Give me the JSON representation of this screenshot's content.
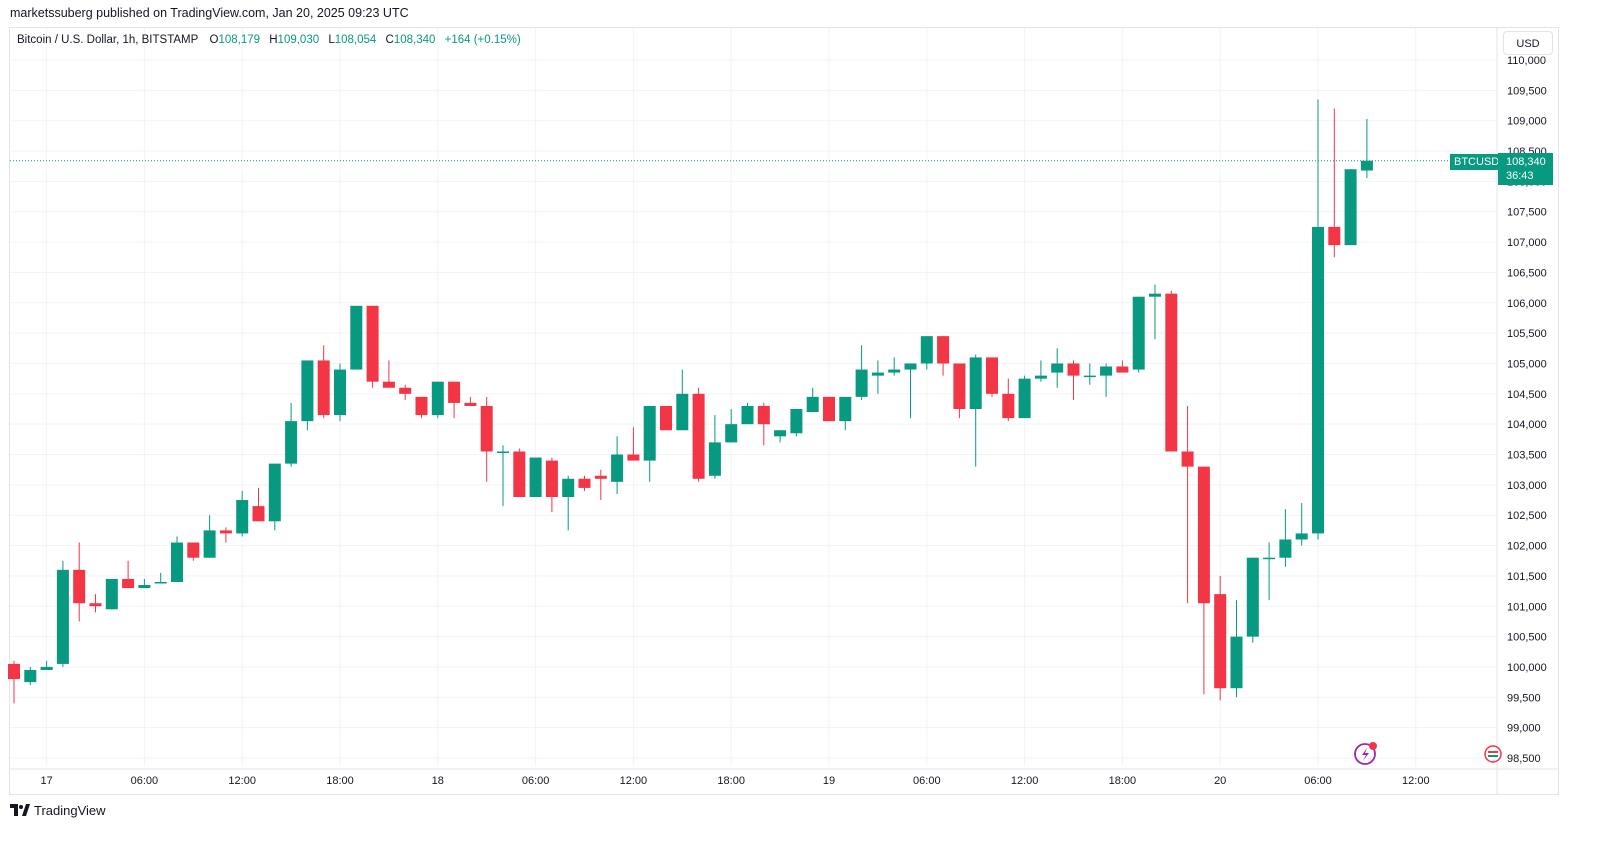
{
  "publisher_line": "marketssuberg published on TradingView.com, Jan 20, 2025 09:23 UTC",
  "legend": {
    "symbol": "Bitcoin / U.S. Dollar, 1h, BITSTAMP",
    "open_key": "O",
    "open": "108,179",
    "high_key": "H",
    "high": "109,030",
    "low_key": "L",
    "low": "108,054",
    "close_key": "C",
    "close": "108,340",
    "change": "+164 (+0.15%)"
  },
  "currency_button": "USD",
  "price_label": {
    "symbol": "BTCUSD",
    "price": "108,340",
    "countdown": "36:43"
  },
  "footer": {
    "brand": "TradingView"
  },
  "colors": {
    "up": "#089981",
    "down": "#f23645",
    "grid": "#f0f3fa",
    "axis_text": "#131722"
  },
  "icons": [
    "tradingview-logo-icon",
    "lightning-icon",
    "flag-icon"
  ],
  "chart_data": {
    "type": "candlestick",
    "interval": "1h",
    "ylim": [
      98500,
      110000
    ],
    "y_ticks": [
      98500,
      99000,
      99500,
      100000,
      100500,
      101000,
      101500,
      102000,
      102500,
      103000,
      103500,
      104000,
      104500,
      105000,
      105500,
      106000,
      106500,
      107000,
      107500,
      108000,
      108500,
      109000,
      109500,
      110000
    ],
    "y_tick_labels": [
      "98,500",
      "99,000",
      "99,500",
      "100,000",
      "100,500",
      "101,000",
      "101,500",
      "102,000",
      "102,500",
      "103,000",
      "103,500",
      "104,000",
      "104,500",
      "105,000",
      "105,500",
      "106,000",
      "106,500",
      "107,000",
      "107,500",
      "108,000",
      "108,500",
      "109,000",
      "109,500",
      "110,000"
    ],
    "x_ticks": [
      {
        "index": 2,
        "label": "17"
      },
      {
        "index": 8,
        "label": "06:00"
      },
      {
        "index": 14,
        "label": "12:00"
      },
      {
        "index": 20,
        "label": "18:00"
      },
      {
        "index": 26,
        "label": "18"
      },
      {
        "index": 32,
        "label": "06:00"
      },
      {
        "index": 38,
        "label": "12:00"
      },
      {
        "index": 44,
        "label": "18:00"
      },
      {
        "index": 50,
        "label": "19"
      },
      {
        "index": 56,
        "label": "06:00"
      },
      {
        "index": 62,
        "label": "12:00"
      },
      {
        "index": 68,
        "label": "18:00"
      },
      {
        "index": 74,
        "label": "20"
      },
      {
        "index": 80,
        "label": "06:00"
      },
      {
        "index": 86,
        "label": "12:00"
      }
    ],
    "current_price": 108340,
    "ohlc": [
      [
        100050,
        100100,
        99400,
        99800
      ],
      [
        99750,
        100000,
        99700,
        99950
      ],
      [
        99950,
        100100,
        99950,
        100000
      ],
      [
        100050,
        101750,
        100000,
        101600
      ],
      [
        101600,
        102050,
        100750,
        101050
      ],
      [
        101050,
        101200,
        100900,
        101000
      ],
      [
        100950,
        101450,
        100950,
        101450
      ],
      [
        101450,
        101750,
        101300,
        101300
      ],
      [
        101300,
        101450,
        101300,
        101350
      ],
      [
        101400,
        101550,
        101400,
        101400
      ],
      [
        101400,
        102150,
        101400,
        102050
      ],
      [
        102050,
        102050,
        101750,
        101800
      ],
      [
        101800,
        102500,
        101800,
        102250
      ],
      [
        102250,
        102300,
        102050,
        102200
      ],
      [
        102200,
        102900,
        102150,
        102750
      ],
      [
        102650,
        102950,
        102400,
        102400
      ],
      [
        102400,
        103350,
        102250,
        103350
      ],
      [
        103350,
        104350,
        103300,
        104050
      ],
      [
        104050,
        105050,
        103900,
        105050
      ],
      [
        105050,
        105300,
        104100,
        104150
      ],
      [
        104150,
        105000,
        104050,
        104900
      ],
      [
        104900,
        105950,
        104900,
        105950
      ],
      [
        105950,
        105950,
        104600,
        104700
      ],
      [
        104700,
        105050,
        104650,
        104600
      ],
      [
        104600,
        104650,
        104400,
        104500
      ],
      [
        104450,
        104450,
        104100,
        104150
      ],
      [
        104150,
        104700,
        104100,
        104700
      ],
      [
        104700,
        104700,
        104100,
        104350
      ],
      [
        104350,
        104450,
        104300,
        104300
      ],
      [
        104300,
        104450,
        103050,
        103550
      ],
      [
        103550,
        103650,
        102650,
        103550
      ],
      [
        103550,
        103600,
        102800,
        102800
      ],
      [
        102800,
        103450,
        102800,
        103450
      ],
      [
        103400,
        103450,
        102550,
        102800
      ],
      [
        102800,
        103150,
        102250,
        103100
      ],
      [
        103100,
        103150,
        102900,
        102950
      ],
      [
        103150,
        103250,
        102750,
        103100
      ],
      [
        103050,
        103800,
        102850,
        103500
      ],
      [
        103500,
        103950,
        103500,
        103400
      ],
      [
        103400,
        104300,
        103050,
        104300
      ],
      [
        104300,
        104300,
        103900,
        103900
      ],
      [
        103900,
        104900,
        103900,
        104500
      ],
      [
        104500,
        104600,
        103050,
        103100
      ],
      [
        103150,
        104150,
        103100,
        103700
      ],
      [
        103700,
        104250,
        103700,
        104000
      ],
      [
        104000,
        104350,
        104000,
        104300
      ],
      [
        104300,
        104350,
        103650,
        104000
      ],
      [
        103800,
        103900,
        103700,
        103900
      ],
      [
        103850,
        104200,
        103800,
        104250
      ],
      [
        104200,
        104600,
        104200,
        104450
      ],
      [
        104450,
        104450,
        104050,
        104050
      ],
      [
        104050,
        104450,
        103900,
        104450
      ],
      [
        104450,
        105300,
        104400,
        104900
      ],
      [
        104800,
        105050,
        104500,
        104850
      ],
      [
        104850,
        105100,
        104800,
        104900
      ],
      [
        104900,
        105000,
        104100,
        105000
      ],
      [
        105000,
        105450,
        104900,
        105450
      ],
      [
        105450,
        105450,
        104800,
        105000
      ],
      [
        105000,
        105000,
        104100,
        104250
      ],
      [
        104250,
        105150,
        103300,
        105100
      ],
      [
        105100,
        105100,
        104450,
        104500
      ],
      [
        104500,
        104750,
        104050,
        104100
      ],
      [
        104100,
        104800,
        104100,
        104750
      ],
      [
        104750,
        105050,
        104700,
        104800
      ],
      [
        104850,
        105250,
        104600,
        105000
      ],
      [
        105000,
        105050,
        104400,
        104800
      ],
      [
        104800,
        105000,
        104650,
        104800
      ],
      [
        104800,
        105000,
        104450,
        104950
      ],
      [
        104950,
        105050,
        104900,
        104850
      ],
      [
        104900,
        106100,
        104850,
        106100
      ],
      [
        106100,
        106300,
        105400,
        106150
      ],
      [
        106150,
        106200,
        103550,
        103550
      ],
      [
        103550,
        104300,
        101050,
        103300
      ],
      [
        103300,
        103300,
        99550,
        101050
      ],
      [
        101200,
        101500,
        99450,
        99650
      ],
      [
        99650,
        101100,
        99500,
        100500
      ],
      [
        100500,
        101800,
        100400,
        101800
      ],
      [
        101800,
        102050,
        101100,
        101800
      ],
      [
        101800,
        102600,
        101650,
        102100
      ],
      [
        102100,
        102700,
        102000,
        102200
      ],
      [
        102200,
        109350,
        102100,
        107250
      ],
      [
        107250,
        109200,
        106750,
        106950
      ],
      [
        106950,
        108200,
        106950,
        108200
      ],
      [
        108179,
        109030,
        108054,
        108340
      ]
    ]
  }
}
